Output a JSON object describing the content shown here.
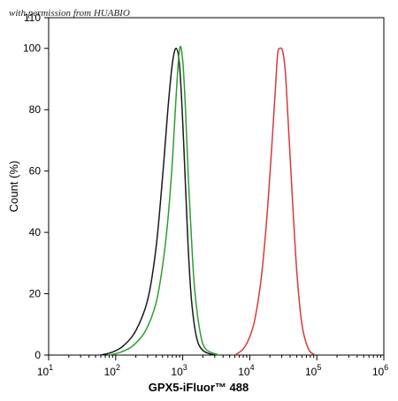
{
  "watermark": "with permission from HUABIO",
  "chart_data": {
    "type": "line",
    "title": "",
    "xlabel": "GPX5-iFluor™ 488",
    "ylabel": "Count  (%)",
    "xscale": "log",
    "xlim": [
      10,
      1000000
    ],
    "ylim": [
      0,
      110
    ],
    "x_ticks": [
      {
        "value": 10,
        "base": "10",
        "exp": "1"
      },
      {
        "value": 100,
        "base": "10",
        "exp": "2"
      },
      {
        "value": 1000,
        "base": "10",
        "exp": "3"
      },
      {
        "value": 10000,
        "base": "10",
        "exp": "4"
      },
      {
        "value": 100000,
        "base": "10",
        "exp": "5"
      },
      {
        "value": 1000000,
        "base": "10",
        "exp": "6"
      }
    ],
    "y_ticks": [
      0,
      20,
      40,
      60,
      80,
      100,
      110
    ],
    "grid": false,
    "legend": "none",
    "series": [
      {
        "color": "#1a1a1a",
        "x": [
          60,
          90,
          130,
          200,
          300,
          400,
          500,
          600,
          700,
          800,
          900,
          1000,
          1100,
          1200,
          1350,
          1600,
          2000,
          3000
        ],
        "y": [
          0,
          1,
          3,
          8,
          18,
          35,
          58,
          80,
          95,
          100,
          94,
          76,
          55,
          36,
          18,
          6,
          1.5,
          0
        ]
      },
      {
        "color": "#2e9e2e",
        "x": [
          80,
          120,
          180,
          280,
          400,
          500,
          600,
          700,
          800,
          900,
          1000,
          1100,
          1200,
          1350,
          1500,
          1800,
          2200,
          3500
        ],
        "y": [
          0,
          1,
          3,
          8,
          17,
          29,
          44,
          63,
          85,
          100,
          96,
          80,
          60,
          38,
          22,
          8,
          2,
          0
        ]
      },
      {
        "color": "#d8383c",
        "x": [
          6000,
          8000,
          10000,
          12000,
          15000,
          18000,
          21000,
          24000,
          26000,
          28000,
          31000,
          34000,
          37000,
          42000,
          50000,
          60000,
          75000,
          95000
        ],
        "y": [
          0,
          2,
          6,
          12,
          26,
          45,
          66,
          86,
          98,
          100,
          99,
          92,
          78,
          56,
          28,
          10,
          2,
          0
        ]
      }
    ]
  }
}
